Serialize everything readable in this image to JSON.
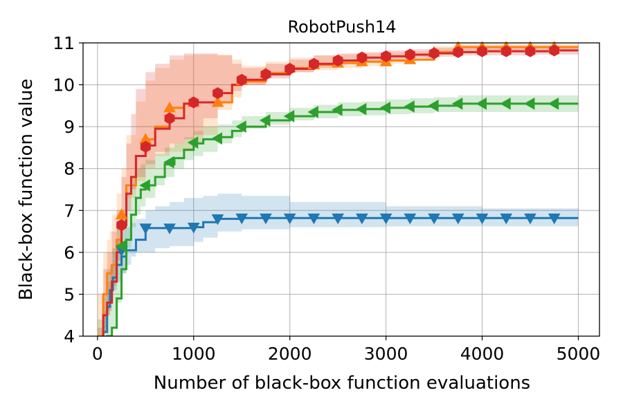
{
  "chart_data": {
    "type": "line",
    "title": "RobotPush14",
    "xlabel": "Number of black-box function evaluations",
    "ylabel": "Black-box function value",
    "xlim": [
      -150,
      5220
    ],
    "ylim": [
      4,
      11
    ],
    "xticks": [
      0,
      1000,
      2000,
      3000,
      4000,
      5000
    ],
    "yticks": [
      4,
      5,
      6,
      7,
      8,
      9,
      10,
      11
    ],
    "grid": true,
    "series": [
      {
        "color": "#1f77b4",
        "marker": "triangle-down",
        "x": [
          0,
          60,
          100,
          130,
          160,
          200,
          250,
          300,
          350,
          400,
          500,
          600,
          750,
          900,
          1000,
          1100,
          1250,
          1500,
          2000,
          3000,
          4000,
          5000
        ],
        "y": [
          3.5,
          4.1,
          4.7,
          5.1,
          5.4,
          5.7,
          5.9,
          6.05,
          6.05,
          6.3,
          6.58,
          6.58,
          6.58,
          6.58,
          6.6,
          6.72,
          6.8,
          6.82,
          6.82,
          6.82,
          6.82,
          6.82
        ],
        "lower": [
          3.0,
          3.6,
          4.1,
          4.5,
          4.8,
          5.1,
          5.3,
          5.5,
          5.7,
          5.9,
          6.0,
          6.0,
          6.1,
          6.15,
          6.15,
          6.25,
          6.35,
          6.5,
          6.55,
          6.6,
          6.62,
          6.62
        ],
        "upper": [
          4.0,
          4.6,
          5.3,
          5.7,
          6.0,
          6.3,
          6.5,
          6.6,
          6.7,
          6.8,
          7.0,
          7.1,
          7.2,
          7.3,
          7.3,
          7.35,
          7.4,
          7.35,
          7.2,
          7.1,
          7.05,
          7.05
        ],
        "markers_x": [
          250,
          500,
          750,
          1000,
          1250,
          1500,
          1750,
          2000,
          2250,
          2500,
          2750,
          3000,
          3250,
          3500,
          3750,
          4000,
          4250,
          4500,
          4750
        ],
        "markers_y": [
          6.05,
          6.58,
          6.58,
          6.6,
          6.8,
          6.82,
          6.82,
          6.82,
          6.82,
          6.82,
          6.82,
          6.82,
          6.82,
          6.82,
          6.82,
          6.82,
          6.82,
          6.82,
          6.82
        ]
      },
      {
        "color": "#ff7f0e",
        "marker": "triangle-up",
        "x": [
          0,
          60,
          100,
          130,
          150,
          200,
          250,
          300,
          400,
          500,
          600,
          750,
          900,
          1000,
          1100,
          1250,
          1400,
          1500,
          1750,
          2000,
          2250,
          2500,
          2750,
          3000,
          3250,
          3500,
          3750,
          4000,
          4500,
          5000
        ],
        "y": [
          4.0,
          5.0,
          5.5,
          5.5,
          5.7,
          6.3,
          6.9,
          7.6,
          8.3,
          8.7,
          9.0,
          9.45,
          9.55,
          9.58,
          9.58,
          9.58,
          10.0,
          10.08,
          10.28,
          10.4,
          10.48,
          10.52,
          10.55,
          10.58,
          10.6,
          10.78,
          10.9,
          10.9,
          10.9,
          10.9
        ],
        "lower": [
          3.0,
          3.8,
          4.2,
          4.5,
          4.8,
          5.3,
          6.0,
          6.6,
          7.3,
          7.7,
          8.0,
          8.3,
          8.4,
          8.4,
          8.6,
          8.8,
          9.4,
          9.7,
          10.0,
          10.2,
          10.3,
          10.35,
          10.4,
          10.45,
          10.5,
          10.65,
          10.78,
          10.8,
          10.8,
          10.8
        ],
        "upper": [
          5.0,
          6.0,
          6.3,
          6.5,
          6.9,
          7.4,
          8.0,
          8.8,
          9.6,
          10.1,
          10.4,
          10.6,
          10.7,
          10.72,
          10.72,
          10.72,
          10.6,
          10.45,
          10.55,
          10.65,
          10.7,
          10.72,
          10.75,
          10.78,
          10.8,
          10.92,
          10.98,
          10.98,
          10.98,
          10.98
        ],
        "markers_x": [
          250,
          500,
          750,
          1000,
          1250,
          1500,
          1750,
          2000,
          2250,
          2500,
          2750,
          3000,
          3250,
          3500,
          3750,
          4000,
          4250,
          4500,
          4750
        ],
        "markers_y": [
          6.9,
          8.7,
          9.45,
          9.58,
          9.58,
          10.1,
          10.28,
          10.4,
          10.48,
          10.52,
          10.55,
          10.55,
          10.6,
          10.78,
          10.9,
          10.9,
          10.9,
          10.9,
          10.9
        ]
      },
      {
        "color": "#2ca02c",
        "marker": "triangle-left",
        "x": [
          0,
          60,
          100,
          150,
          200,
          250,
          300,
          350,
          400,
          450,
          500,
          600,
          700,
          800,
          900,
          1000,
          1100,
          1250,
          1400,
          1500,
          1750,
          2000,
          2250,
          2500,
          2750,
          3000,
          3250,
          3500,
          3750,
          4000,
          4500,
          5000
        ],
        "y": [
          3.5,
          3.8,
          4.0,
          4.2,
          4.9,
          5.6,
          6.3,
          6.9,
          7.3,
          7.5,
          7.6,
          7.8,
          8.1,
          8.25,
          8.45,
          8.6,
          8.7,
          8.75,
          8.9,
          9.0,
          9.15,
          9.25,
          9.35,
          9.4,
          9.42,
          9.45,
          9.48,
          9.5,
          9.55,
          9.55,
          9.55,
          9.55
        ],
        "lower": [
          3.0,
          3.2,
          3.4,
          3.6,
          4.2,
          4.8,
          5.5,
          6.1,
          6.6,
          6.9,
          7.1,
          7.3,
          7.6,
          7.8,
          8.0,
          8.2,
          8.3,
          8.4,
          8.6,
          8.75,
          8.95,
          9.05,
          9.15,
          9.2,
          9.25,
          9.27,
          9.3,
          9.32,
          9.35,
          9.35,
          9.35,
          9.35
        ],
        "upper": [
          4.4,
          5.0,
          5.6,
          6.1,
          6.6,
          7.0,
          7.4,
          7.8,
          8.0,
          8.1,
          8.2,
          8.35,
          8.5,
          8.6,
          8.75,
          8.9,
          9.0,
          9.05,
          9.15,
          9.25,
          9.35,
          9.45,
          9.52,
          9.58,
          9.6,
          9.65,
          9.68,
          9.7,
          9.75,
          9.75,
          9.75,
          9.75
        ],
        "markers_x": [
          250,
          500,
          750,
          1000,
          1250,
          1500,
          1750,
          2000,
          2250,
          2500,
          2750,
          3000,
          3250,
          3500,
          3750,
          4000,
          4250,
          4500,
          4750
        ],
        "markers_y": [
          6.15,
          7.6,
          8.15,
          8.62,
          8.72,
          9.0,
          9.15,
          9.25,
          9.35,
          9.4,
          9.42,
          9.45,
          9.48,
          9.5,
          9.55,
          9.55,
          9.55,
          9.55,
          9.55
        ]
      },
      {
        "color": "#d62728",
        "marker": "hexagon",
        "x": [
          0,
          60,
          100,
          150,
          200,
          250,
          300,
          350,
          400,
          500,
          600,
          750,
          900,
          1000,
          1100,
          1250,
          1400,
          1500,
          1750,
          2000,
          2250,
          2500,
          2750,
          3000,
          3250,
          3500,
          3750,
          4000,
          4250,
          4500,
          4750,
          5000
        ],
        "y": [
          3.5,
          4.5,
          4.8,
          5.3,
          6.0,
          6.65,
          7.4,
          7.8,
          8.3,
          8.55,
          8.95,
          9.2,
          9.55,
          9.58,
          9.58,
          9.8,
          10.0,
          10.12,
          10.25,
          10.38,
          10.5,
          10.58,
          10.65,
          10.68,
          10.72,
          10.75,
          10.78,
          10.8,
          10.8,
          10.8,
          10.82,
          10.82
        ],
        "lower": [
          2.8,
          3.8,
          4.1,
          4.6,
          5.2,
          5.8,
          6.5,
          7.0,
          7.5,
          7.8,
          8.1,
          8.4,
          8.6,
          8.7,
          8.8,
          9.2,
          9.6,
          9.85,
          10.0,
          10.15,
          10.3,
          10.4,
          10.5,
          10.55,
          10.6,
          10.63,
          10.67,
          10.7,
          10.7,
          10.7,
          10.72,
          10.72
        ],
        "upper": [
          4.2,
          5.6,
          6.0,
          6.5,
          7.0,
          7.8,
          8.6,
          9.3,
          9.9,
          10.3,
          10.5,
          10.7,
          10.75,
          10.75,
          10.75,
          10.7,
          10.5,
          10.4,
          10.5,
          10.6,
          10.7,
          10.75,
          10.78,
          10.82,
          10.85,
          10.88,
          10.9,
          10.92,
          10.92,
          10.92,
          10.92,
          10.92
        ],
        "markers_x": [
          250,
          500,
          750,
          1000,
          1250,
          1500,
          1750,
          2000,
          2250,
          2500,
          2750,
          3000,
          3250,
          3500,
          3750,
          4000,
          4250,
          4500,
          4750
        ],
        "markers_y": [
          6.65,
          8.52,
          9.2,
          9.58,
          9.8,
          10.12,
          10.25,
          10.38,
          10.5,
          10.58,
          10.65,
          10.68,
          10.72,
          10.75,
          10.78,
          10.8,
          10.8,
          10.8,
          10.82
        ]
      }
    ]
  }
}
